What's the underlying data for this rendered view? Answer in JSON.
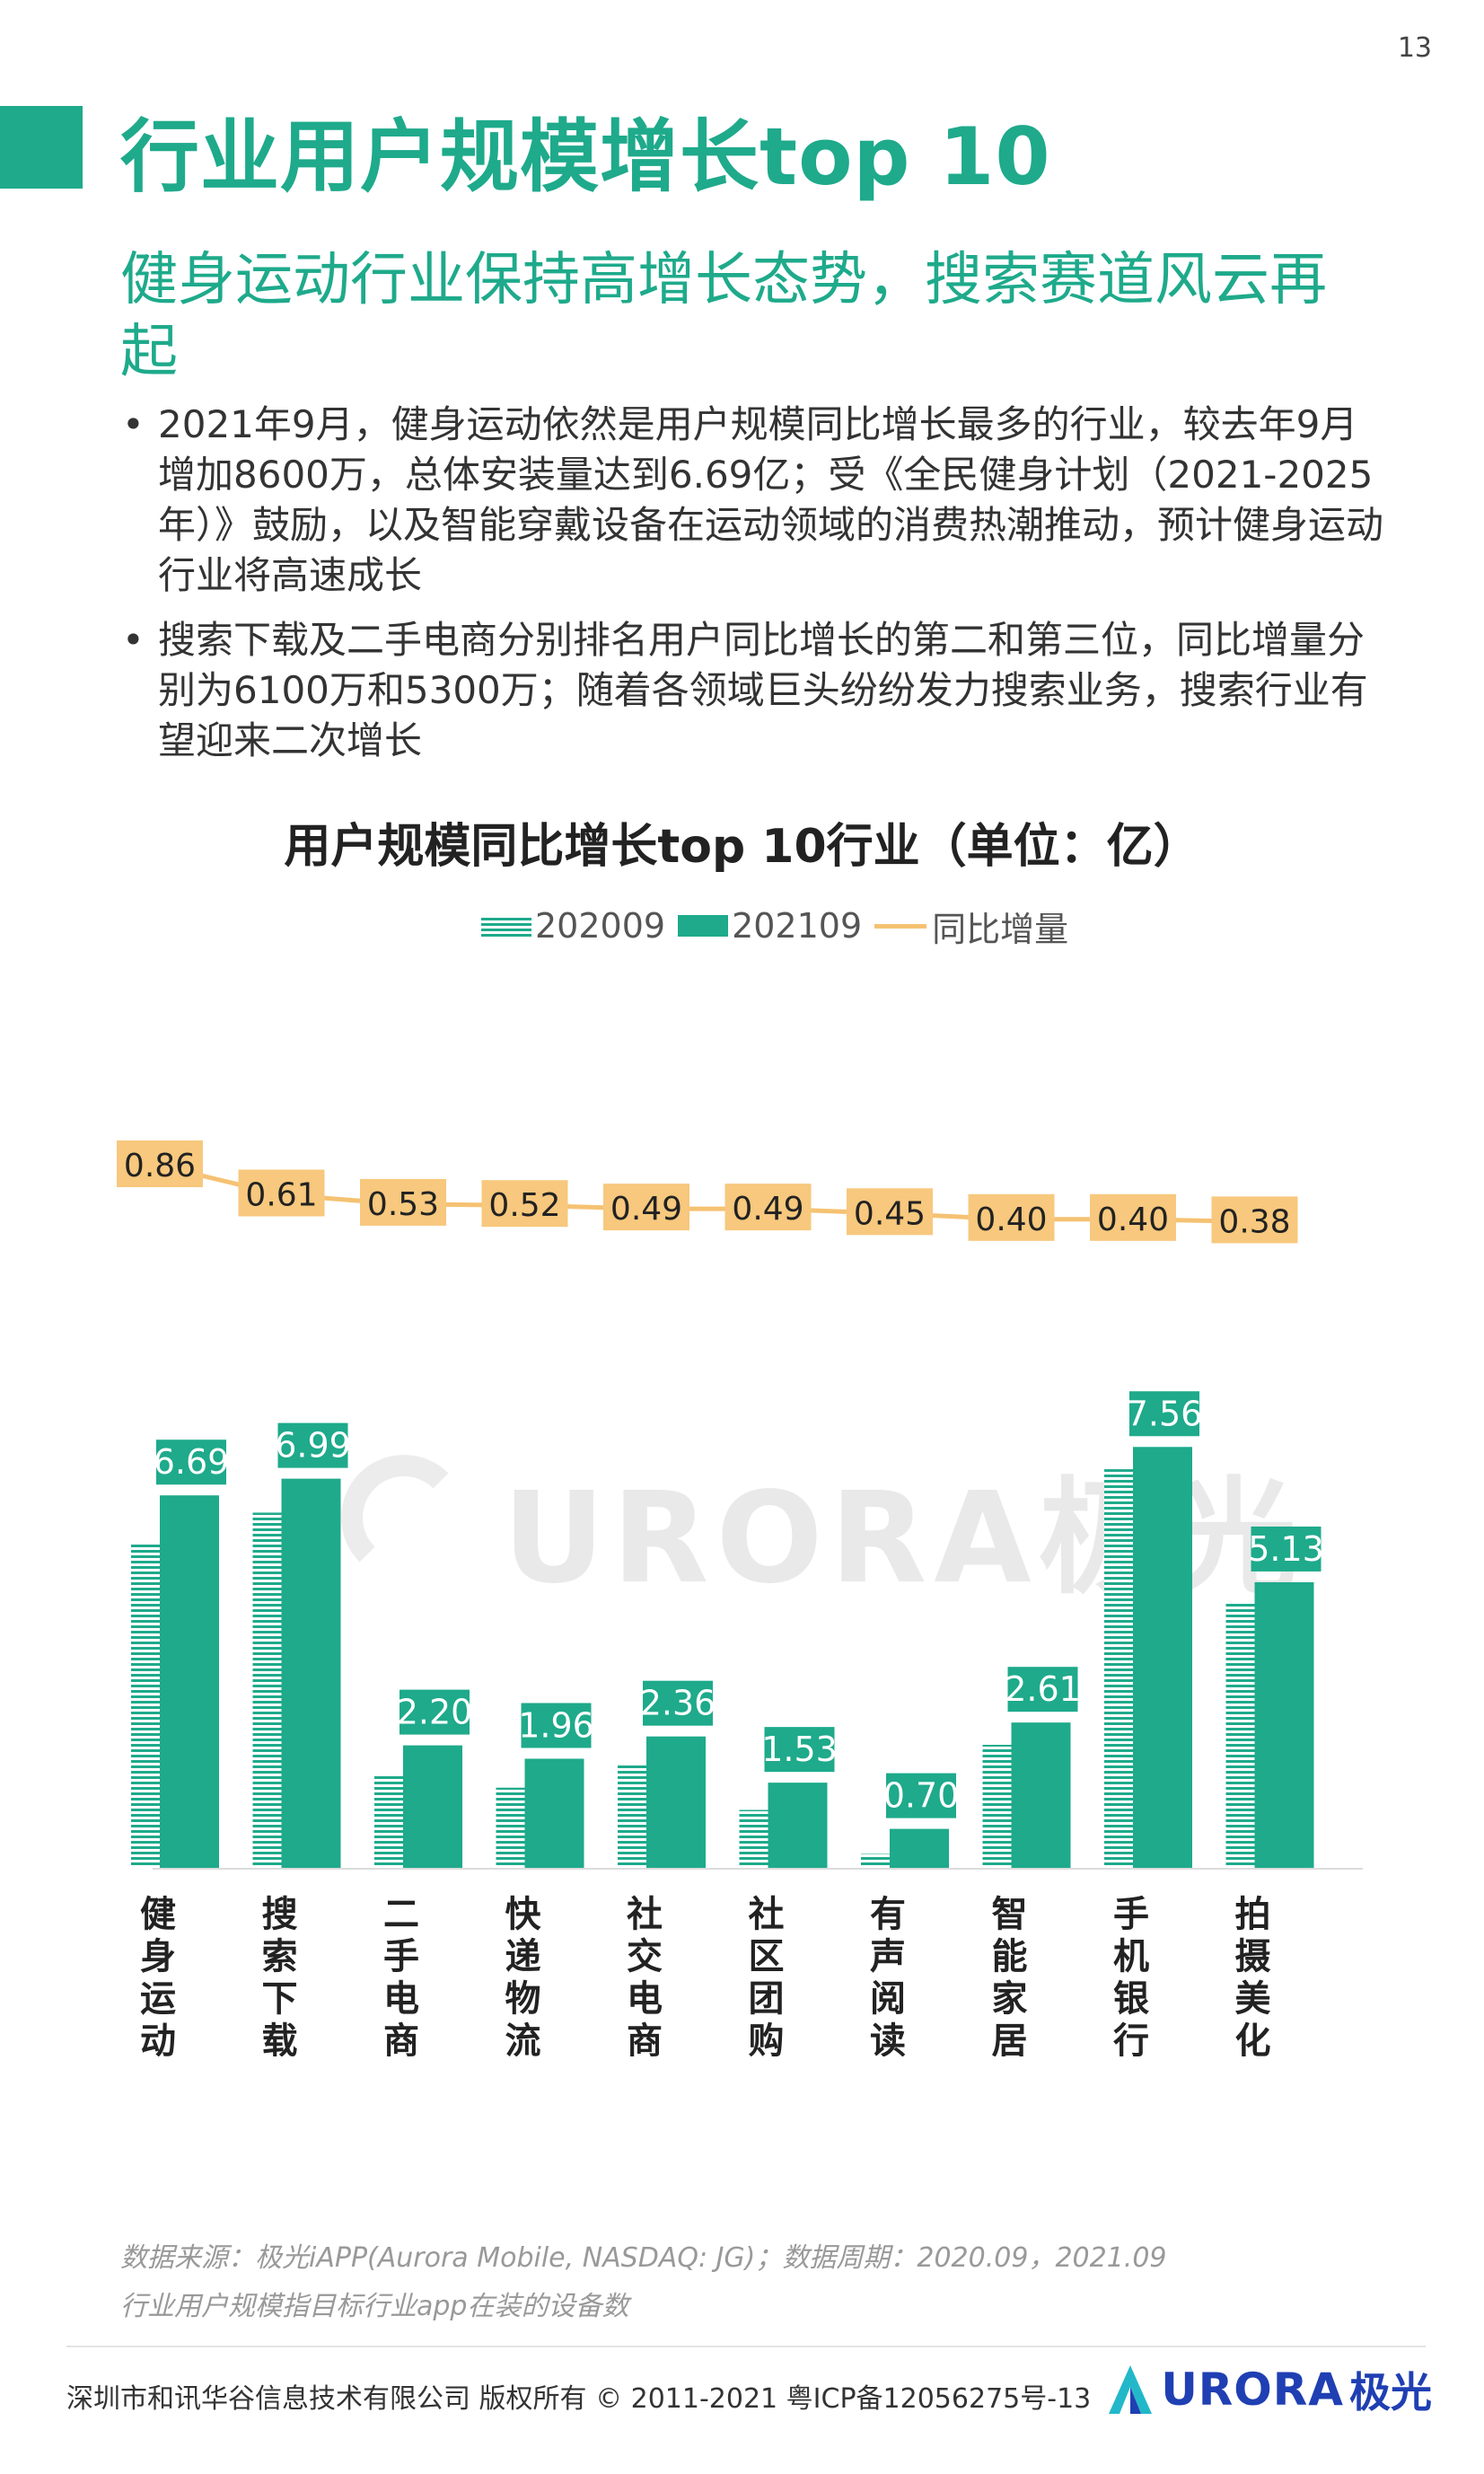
{
  "page_number": "13",
  "title": "行业用户规模增长top 10",
  "subtitle": "健身运动行业保持高增长态势，搜索赛道风云再起",
  "bullets": [
    "2021年9月，健身运动依然是用户规模同比增长最多的行业，较去年9月增加8600万，总体安装量达到6.69亿；受《全民健身计划（2021-2025年）》鼓励，以及智能穿戴设备在运动领域的消费热潮推动，预计健身运动行业将高速成长",
    "搜索下载及二手电商分别排名用户同比增长的第二和第三位，同比增量分别为6100万和5300万；随着各领域巨头纷纷发力搜索业务，搜索行业有望迎来二次增长"
  ],
  "bullet_symbol": "•",
  "watermark": "URORA极光",
  "chart_data": {
    "type": "bar",
    "title": "用户规模同比增长top 10行业（单位：亿）",
    "categories": [
      "健身运动",
      "搜索下载",
      "二手电商",
      "快递物流",
      "社交电商",
      "社区团购",
      "有声阅读",
      "智能家居",
      "手机银行",
      "拍摄美化"
    ],
    "series": [
      {
        "name": "202009",
        "type": "bar",
        "style": "hatched",
        "values": [
          5.83,
          6.38,
          1.67,
          1.44,
          1.87,
          1.04,
          0.25,
          2.21,
          7.16,
          4.75
        ]
      },
      {
        "name": "202109",
        "type": "bar",
        "style": "solid",
        "values": [
          6.69,
          6.99,
          2.2,
          1.96,
          2.36,
          1.53,
          0.7,
          2.61,
          7.56,
          5.13
        ]
      },
      {
        "name": "同比增量",
        "type": "line",
        "values": [
          0.86,
          0.61,
          0.53,
          0.52,
          0.49,
          0.49,
          0.45,
          0.4,
          0.4,
          0.38
        ]
      }
    ],
    "bar_labels": [
      "6.69",
      "6.99",
      "2.20",
      "1.96",
      "2.36",
      "1.53",
      "0.70",
      "2.61",
      "7.56",
      "5.13"
    ],
    "line_labels": [
      "0.86",
      "0.61",
      "0.53",
      "0.52",
      "0.49",
      "0.49",
      "0.45",
      "0.40",
      "0.40",
      "0.38"
    ],
    "legend": [
      "202009",
      "202109",
      "同比增量"
    ],
    "legend_position": "top",
    "grid": false,
    "colors": {
      "bar": "#1eaa8b",
      "line": "#f5c272",
      "label_bg": "#1eaa8b",
      "line_label_bg": "#f7c87d"
    }
  },
  "source_note": "数据来源：极光iAPP(Aurora Mobile, NASDAQ: JG)；数据周期：2020.09，2021.09",
  "definition_note": "行业用户规模指目标行业app在装的设备数",
  "footer": "深圳市和讯华谷信息技术有限公司 版权所有 © 2011-2021 粤ICP备12056275号-13",
  "logo": {
    "text": "URORA",
    "cn": "极光"
  }
}
